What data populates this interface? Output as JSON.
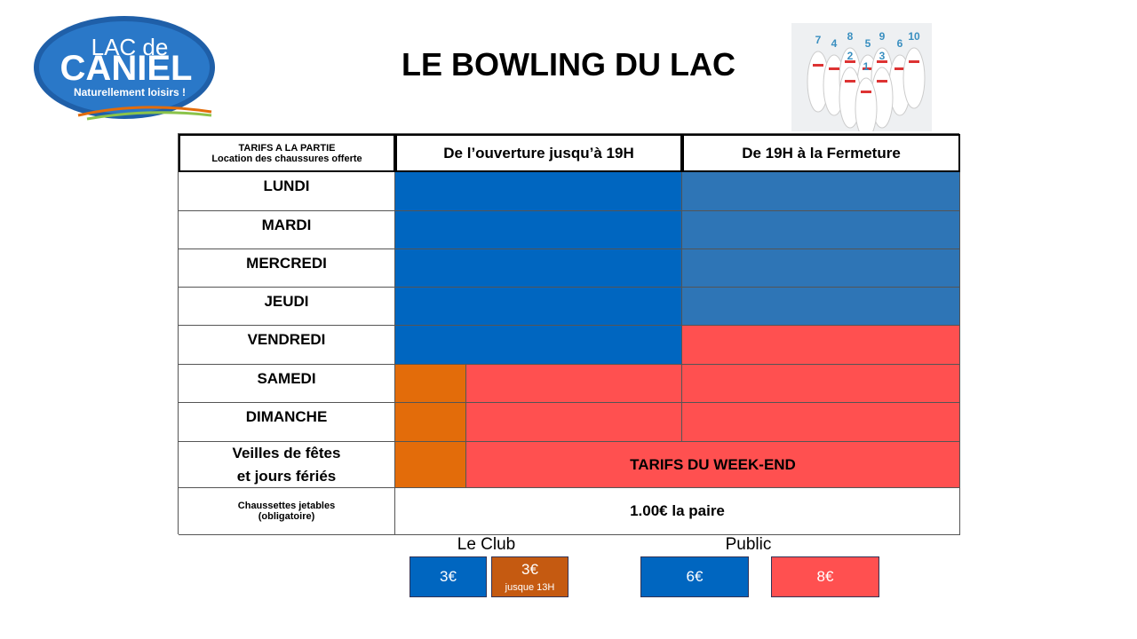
{
  "header": {
    "title": "LE BOWLING DU LAC"
  },
  "logo": {
    "line1": "LAC de",
    "line2": "CANIEL",
    "tagline": "Naturellement loisirs !"
  },
  "pins": [
    "7",
    "4",
    "8",
    "5",
    "9",
    "6",
    "10",
    "2",
    "3",
    "1"
  ],
  "table": {
    "corner": [
      "TARIFS A LA PARTIE",
      "Location des chaussures offerte"
    ],
    "columns": [
      "De l’ouverture jusqu’à 19H",
      "De 19H à la Fermeture"
    ],
    "days": [
      "LUNDI",
      "MARDI",
      "MERCREDI",
      "JEUDI",
      "VENDREDI",
      "SAMEDI",
      "DIMANCHE"
    ],
    "holiday": [
      "Veilles de fêtes",
      "et jours fériés"
    ],
    "weekend_note": "TARIFS DU WEEK-END",
    "socks": [
      "Chaussettes  jetables",
      "(obligatoire)"
    ],
    "socks_price": "1.00€ la paire"
  },
  "legend": {
    "club": "Le Club",
    "public": "Public",
    "club_blue": "3€",
    "club_orange": "3€",
    "club_orange_note": "jusque 13H",
    "public_blue": "6€",
    "public_red": "8€"
  }
}
